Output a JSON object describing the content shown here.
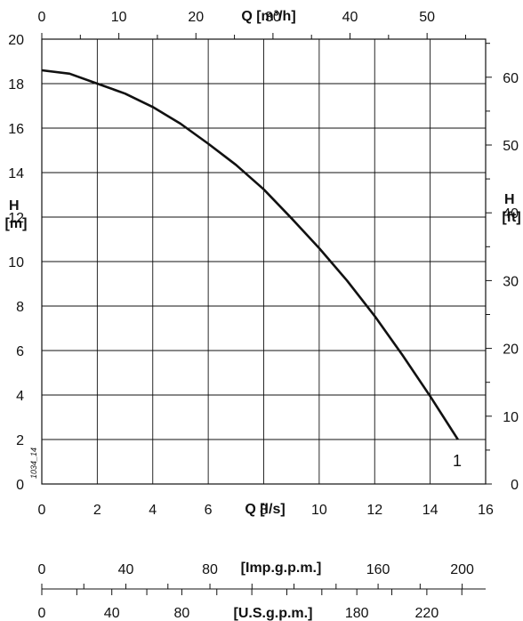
{
  "chart_data": {
    "type": "line",
    "x": [
      0,
      1,
      2,
      3,
      4,
      5,
      6,
      7,
      8,
      9,
      10,
      11,
      12,
      13,
      14,
      15
    ],
    "series": [
      {
        "name": "1",
        "values": [
          18.6,
          18.45,
          18.0,
          17.55,
          16.95,
          16.2,
          15.3,
          14.35,
          13.25,
          11.95,
          10.6,
          9.15,
          7.55,
          5.8,
          3.95,
          2.0
        ]
      }
    ],
    "xlabel": "Q [l/s]",
    "ylabel": "H [m]",
    "xlim": [
      0,
      16
    ],
    "ylim": [
      0,
      20
    ],
    "x_ticks": [
      "0",
      "2",
      "4",
      "6",
      "8",
      "10",
      "12",
      "14",
      "16"
    ],
    "y_ticks": [
      "0",
      "2",
      "4",
      "6",
      "8",
      "10",
      "12",
      "14",
      "16",
      "18",
      "20"
    ],
    "grid": true,
    "top_axis": {
      "label": "Q [m³/h]",
      "ticks": [
        "0",
        "10",
        "20",
        "30",
        "40",
        "50"
      ]
    },
    "right_axis": {
      "label": "H [ft]",
      "ticks": [
        "0",
        "10",
        "20",
        "30",
        "40",
        "50",
        "60"
      ]
    },
    "extra_axes": [
      {
        "label": "[Imp.g.p.m.]",
        "ticks": [
          "0",
          "40",
          "80",
          "160",
          "200"
        ]
      },
      {
        "label": "[U.S.g.p.m.]",
        "ticks": [
          "0",
          "40",
          "80",
          "180",
          "220"
        ]
      }
    ],
    "figure_code": "1034_14",
    "curve_label": "1"
  }
}
